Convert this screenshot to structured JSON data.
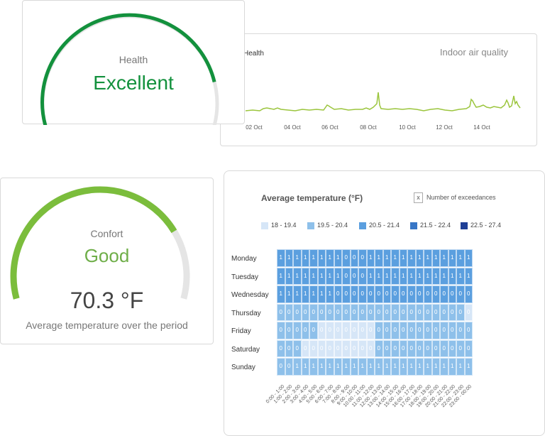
{
  "health": {
    "label": "Health",
    "value": "Excellent",
    "gauge_level": 0.86,
    "gauge_color": "#13913d",
    "track_color": "#e5e5e5"
  },
  "iaq": {
    "title": "Indoor air quality",
    "series_label": "Health",
    "line_color": "#9bc53d",
    "x_ticks": [
      "02 Oct",
      "04 Oct",
      "06 Oct",
      "08 Oct",
      "10 Oct",
      "12 Oct",
      "14 Oct"
    ]
  },
  "comfort": {
    "label": "Confort",
    "value": "Good",
    "gauge_level": 0.78,
    "gauge_color": "#7bbd3c",
    "track_color": "#e5e5e5",
    "temperature": "70.3 °F",
    "temperature_caption": "Average temperature over the period"
  },
  "temperature_heatmap": {
    "title": "Average temperature (°F)",
    "exceedances_icon": "x",
    "exceedances_label": "Number of exceedances",
    "legend": [
      {
        "label": "18 - 19.4",
        "color": "#d6e6f7"
      },
      {
        "label": "19.5 - 20.4",
        "color": "#8ec0ea"
      },
      {
        "label": "20.5 - 21.4",
        "color": "#5b9fdf"
      },
      {
        "label": "21.5 - 22.4",
        "color": "#3776c6"
      },
      {
        "label": "22.5 - 27.4",
        "color": "#1f3f96"
      }
    ],
    "days": [
      "Monday",
      "Tuesday",
      "Wednesday",
      "Thursday",
      "Friday",
      "Saturday",
      "Sunday"
    ],
    "hours": [
      "0:00 - 1:00",
      "1:00 - 2:00",
      "2:00 - 3:00",
      "3:00 - 4:00",
      "4:00 - 5:00",
      "5:00 - 6:00",
      "6:00 - 7:00",
      "7:00 - 8:00",
      "8:00 - 9:00",
      "9:00 - 10:00",
      "10:00 - 11:00",
      "11:00 - 12:00",
      "12:00 - 13:00",
      "13:00 - 14:00",
      "14:00 - 15:00",
      "15:00 - 16:00",
      "16:00 - 17:00",
      "17:00 - 18:00",
      "18:00 - 19:00",
      "19:00 - 20:00",
      "20:00 - 21:00",
      "21:00 - 22:00",
      "22:00 - 23:00",
      "23:00 - 00:00"
    ],
    "exceedances": [
      [
        1,
        1,
        1,
        1,
        1,
        1,
        1,
        1,
        0,
        0,
        0,
        1,
        1,
        1,
        1,
        1,
        1,
        1,
        1,
        1,
        1,
        1,
        1,
        1
      ],
      [
        1,
        1,
        1,
        1,
        1,
        1,
        1,
        1,
        0,
        0,
        0,
        1,
        1,
        1,
        1,
        1,
        1,
        1,
        1,
        1,
        1,
        1,
        1,
        1
      ],
      [
        1,
        1,
        1,
        1,
        1,
        1,
        1,
        0,
        0,
        0,
        0,
        0,
        0,
        0,
        0,
        0,
        0,
        0,
        0,
        0,
        0,
        0,
        0,
        0
      ],
      [
        0,
        0,
        0,
        0,
        0,
        0,
        0,
        0,
        0,
        0,
        0,
        0,
        0,
        0,
        0,
        0,
        0,
        0,
        0,
        0,
        0,
        0,
        0,
        0
      ],
      [
        0,
        0,
        0,
        0,
        0,
        0,
        0,
        0,
        0,
        0,
        0,
        0,
        0,
        0,
        0,
        0,
        0,
        0,
        0,
        0,
        0,
        0,
        0,
        0
      ],
      [
        0,
        0,
        0,
        0,
        0,
        0,
        0,
        0,
        0,
        0,
        0,
        0,
        0,
        0,
        0,
        0,
        0,
        0,
        0,
        0,
        0,
        0,
        0,
        0
      ],
      [
        0,
        0,
        1,
        1,
        1,
        1,
        1,
        1,
        1,
        1,
        1,
        1,
        1,
        1,
        1,
        1,
        1,
        1,
        1,
        1,
        1,
        1,
        1,
        1
      ]
    ],
    "temperature_class": [
      [
        2,
        2,
        2,
        2,
        2,
        2,
        2,
        2,
        2,
        2,
        2,
        2,
        2,
        2,
        2,
        2,
        2,
        2,
        2,
        2,
        2,
        2,
        2,
        2
      ],
      [
        2,
        2,
        2,
        2,
        2,
        2,
        2,
        2,
        2,
        2,
        2,
        2,
        2,
        2,
        2,
        2,
        2,
        2,
        2,
        2,
        2,
        2,
        2,
        2
      ],
      [
        2,
        2,
        2,
        2,
        2,
        2,
        2,
        2,
        2,
        2,
        2,
        2,
        2,
        2,
        2,
        2,
        2,
        2,
        2,
        2,
        2,
        2,
        2,
        2
      ],
      [
        1,
        1,
        1,
        1,
        1,
        1,
        1,
        1,
        1,
        1,
        1,
        1,
        1,
        1,
        1,
        1,
        1,
        1,
        1,
        1,
        1,
        1,
        1,
        0
      ],
      [
        1,
        1,
        1,
        1,
        1,
        0,
        0,
        0,
        0,
        0,
        0,
        0,
        1,
        1,
        1,
        1,
        1,
        1,
        1,
        1,
        1,
        1,
        1,
        1
      ],
      [
        1,
        1,
        1,
        0,
        0,
        0,
        0,
        0,
        0,
        0,
        0,
        0,
        1,
        1,
        1,
        1,
        1,
        1,
        1,
        1,
        1,
        1,
        1,
        1
      ],
      [
        1,
        1,
        1,
        1,
        1,
        1,
        1,
        1,
        1,
        1,
        1,
        1,
        1,
        1,
        1,
        1,
        1,
        1,
        1,
        1,
        1,
        1,
        1,
        1
      ]
    ]
  }
}
